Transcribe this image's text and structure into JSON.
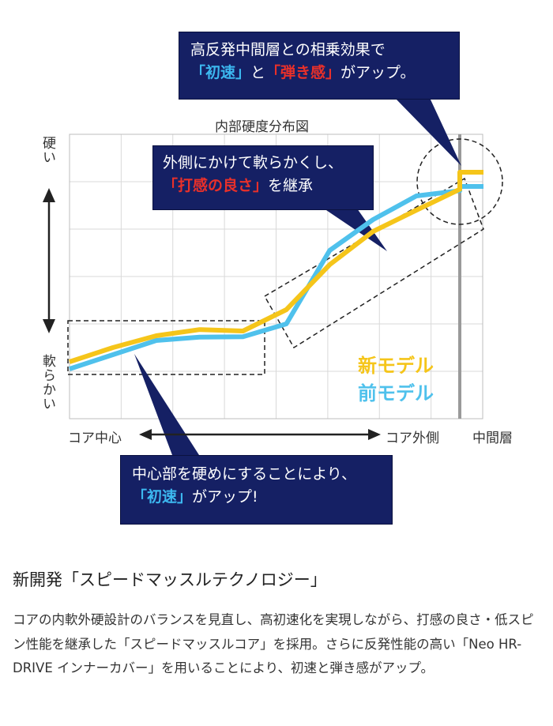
{
  "callouts": {
    "top": {
      "line1": "高反発中間層との相乗効果で",
      "hl1": "「初速」",
      "mid": "と",
      "hl2": "「弾き感」",
      "tail": "がアップ。"
    },
    "middle": {
      "line1": "外側にかけて軟らかくし、",
      "hl": "「打感の良さ」",
      "tail": "を継承"
    },
    "bottom": {
      "line1": "中心部を硬めにすることにより、",
      "hl": "「初速」",
      "tail": "がアップ!"
    }
  },
  "colors": {
    "new_model": "#f5c51a",
    "old_model": "#4fc1ec",
    "callout_bg": "#152064",
    "highlight_red": "#e8302a",
    "highlight_blue": "#3cb8f0"
  },
  "chart_data": {
    "type": "line",
    "title": "内部硬度分布図",
    "y_label_top": "硬い",
    "y_label_bottom": "軟らかい",
    "x_label_left": "コア中心",
    "x_label_right": "コア外側",
    "x_label_layer": "中間層",
    "x": [
      0,
      1,
      2,
      3,
      4,
      5,
      6,
      7,
      8,
      9
    ],
    "ylim": [
      0,
      6
    ],
    "grid": true,
    "legend_placement": "bottom-right",
    "series": [
      {
        "name": "新モデル",
        "values": [
          1.2,
          1.5,
          1.75,
          1.88,
          1.85,
          2.3,
          3.25,
          3.95,
          4.4,
          5.2
        ],
        "color": "#f5c51a"
      },
      {
        "name": "前モデル",
        "values": [
          1.05,
          1.35,
          1.65,
          1.72,
          1.73,
          2.0,
          3.55,
          4.2,
          4.7,
          4.9
        ],
        "color": "#4fc1ec"
      }
    ]
  },
  "section": {
    "title": "新開発「スピードマッスルテクノロジー」",
    "body": "コアの内軟外硬設計のバランスを見直し、高初速化を実現しながら、打感の良さ・低スピン性能を継承した「スピードマッスルコア」を採用。さらに反発性能の高い「Neo HR-DRIVE インナーカバー」を用いることにより、初速と弾き感がアップ。"
  }
}
